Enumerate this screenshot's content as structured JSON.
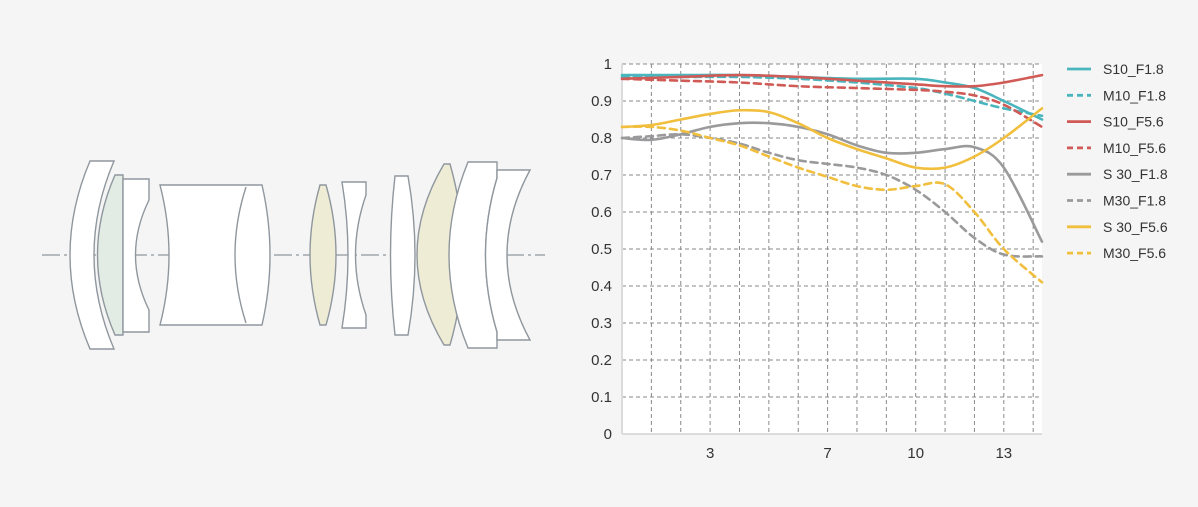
{
  "colors": {
    "background": "#f5f5f5",
    "cyan": "#4bb5bd",
    "red": "#d05a55",
    "gray": "#9a9a9c",
    "yellow": "#f1bf3d",
    "lens_stroke": "#8f979e",
    "lens_fill_white": "#ffffff",
    "lens_fill_green": "#e3ece4",
    "lens_fill_tan": "#efecd5",
    "axis_line": "#dcdcdc"
  },
  "chart_data": {
    "type": "line",
    "title": "",
    "xlabel": "",
    "ylabel": "",
    "xlim": [
      0,
      14.3
    ],
    "ylim": [
      0,
      1
    ],
    "xticks": [
      3,
      7,
      10,
      13
    ],
    "yticks": [
      0,
      0.1,
      0.2,
      0.3,
      0.4,
      0.5,
      0.6,
      0.7,
      0.8,
      0.9,
      1
    ],
    "ytick_labels": [
      "0",
      "0.1",
      "0.2",
      "0.3",
      "0.4",
      "0.5",
      "0.6",
      "0.7",
      "0.8",
      "0.9",
      "1"
    ],
    "grid": true,
    "legend_position": "right",
    "series": [
      {
        "name": "S10_F1.8",
        "color": "#4bb5bd",
        "dash": false,
        "x": [
          0,
          2,
          4,
          6,
          8,
          10,
          11,
          12,
          13,
          14.3
        ],
        "y": [
          0.97,
          0.97,
          0.97,
          0.965,
          0.96,
          0.96,
          0.95,
          0.935,
          0.9,
          0.85
        ]
      },
      {
        "name": "M10_F1.8",
        "color": "#4bb5bd",
        "dash": true,
        "x": [
          0,
          2,
          4,
          6,
          8,
          10,
          11,
          12,
          13,
          14.3
        ],
        "y": [
          0.965,
          0.965,
          0.965,
          0.96,
          0.95,
          0.935,
          0.92,
          0.9,
          0.88,
          0.86
        ]
      },
      {
        "name": "S10_F5.6",
        "color": "#d05a55",
        "dash": false,
        "x": [
          0,
          2,
          4,
          6,
          8,
          10,
          11,
          12,
          13,
          14.3
        ],
        "y": [
          0.96,
          0.965,
          0.97,
          0.965,
          0.955,
          0.945,
          0.94,
          0.94,
          0.95,
          0.97
        ]
      },
      {
        "name": "M10_F5.6",
        "color": "#d05a55",
        "dash": true,
        "x": [
          0,
          2,
          4,
          6,
          8,
          10,
          11,
          12,
          13,
          14.3
        ],
        "y": [
          0.96,
          0.955,
          0.95,
          0.94,
          0.935,
          0.93,
          0.925,
          0.915,
          0.89,
          0.83
        ]
      },
      {
        "name": "S 30_F1.8",
        "color": "#9a9a9c",
        "dash": false,
        "x": [
          0,
          1,
          2,
          3,
          4,
          5,
          6,
          7,
          8,
          9,
          10,
          11,
          12,
          13,
          14.3
        ],
        "y": [
          0.8,
          0.795,
          0.81,
          0.83,
          0.84,
          0.84,
          0.83,
          0.81,
          0.78,
          0.76,
          0.76,
          0.77,
          0.775,
          0.72,
          0.52
        ]
      },
      {
        "name": "M30_F1.8",
        "color": "#9a9a9c",
        "dash": true,
        "x": [
          0,
          1,
          2,
          3,
          4,
          5,
          6,
          7,
          8,
          9,
          10,
          11,
          12,
          13,
          14.3
        ],
        "y": [
          0.8,
          0.805,
          0.81,
          0.8,
          0.785,
          0.76,
          0.74,
          0.73,
          0.72,
          0.7,
          0.66,
          0.6,
          0.53,
          0.485,
          0.48
        ]
      },
      {
        "name": "S 30_F5.6",
        "color": "#f1bf3d",
        "dash": false,
        "x": [
          0,
          1,
          2,
          3,
          4,
          5,
          6,
          7,
          8,
          9,
          10,
          11,
          12,
          13,
          14.3
        ],
        "y": [
          0.83,
          0.835,
          0.85,
          0.865,
          0.875,
          0.87,
          0.84,
          0.8,
          0.77,
          0.745,
          0.72,
          0.72,
          0.75,
          0.8,
          0.88
        ]
      },
      {
        "name": "M30_F5.6",
        "color": "#f1bf3d",
        "dash": true,
        "x": [
          0,
          1,
          2,
          3,
          4,
          5,
          6,
          7,
          8,
          9,
          10,
          11,
          12,
          13,
          14.3
        ],
        "y": [
          0.83,
          0.83,
          0.82,
          0.8,
          0.78,
          0.75,
          0.72,
          0.695,
          0.67,
          0.66,
          0.67,
          0.675,
          0.6,
          0.5,
          0.41
        ]
      }
    ]
  }
}
